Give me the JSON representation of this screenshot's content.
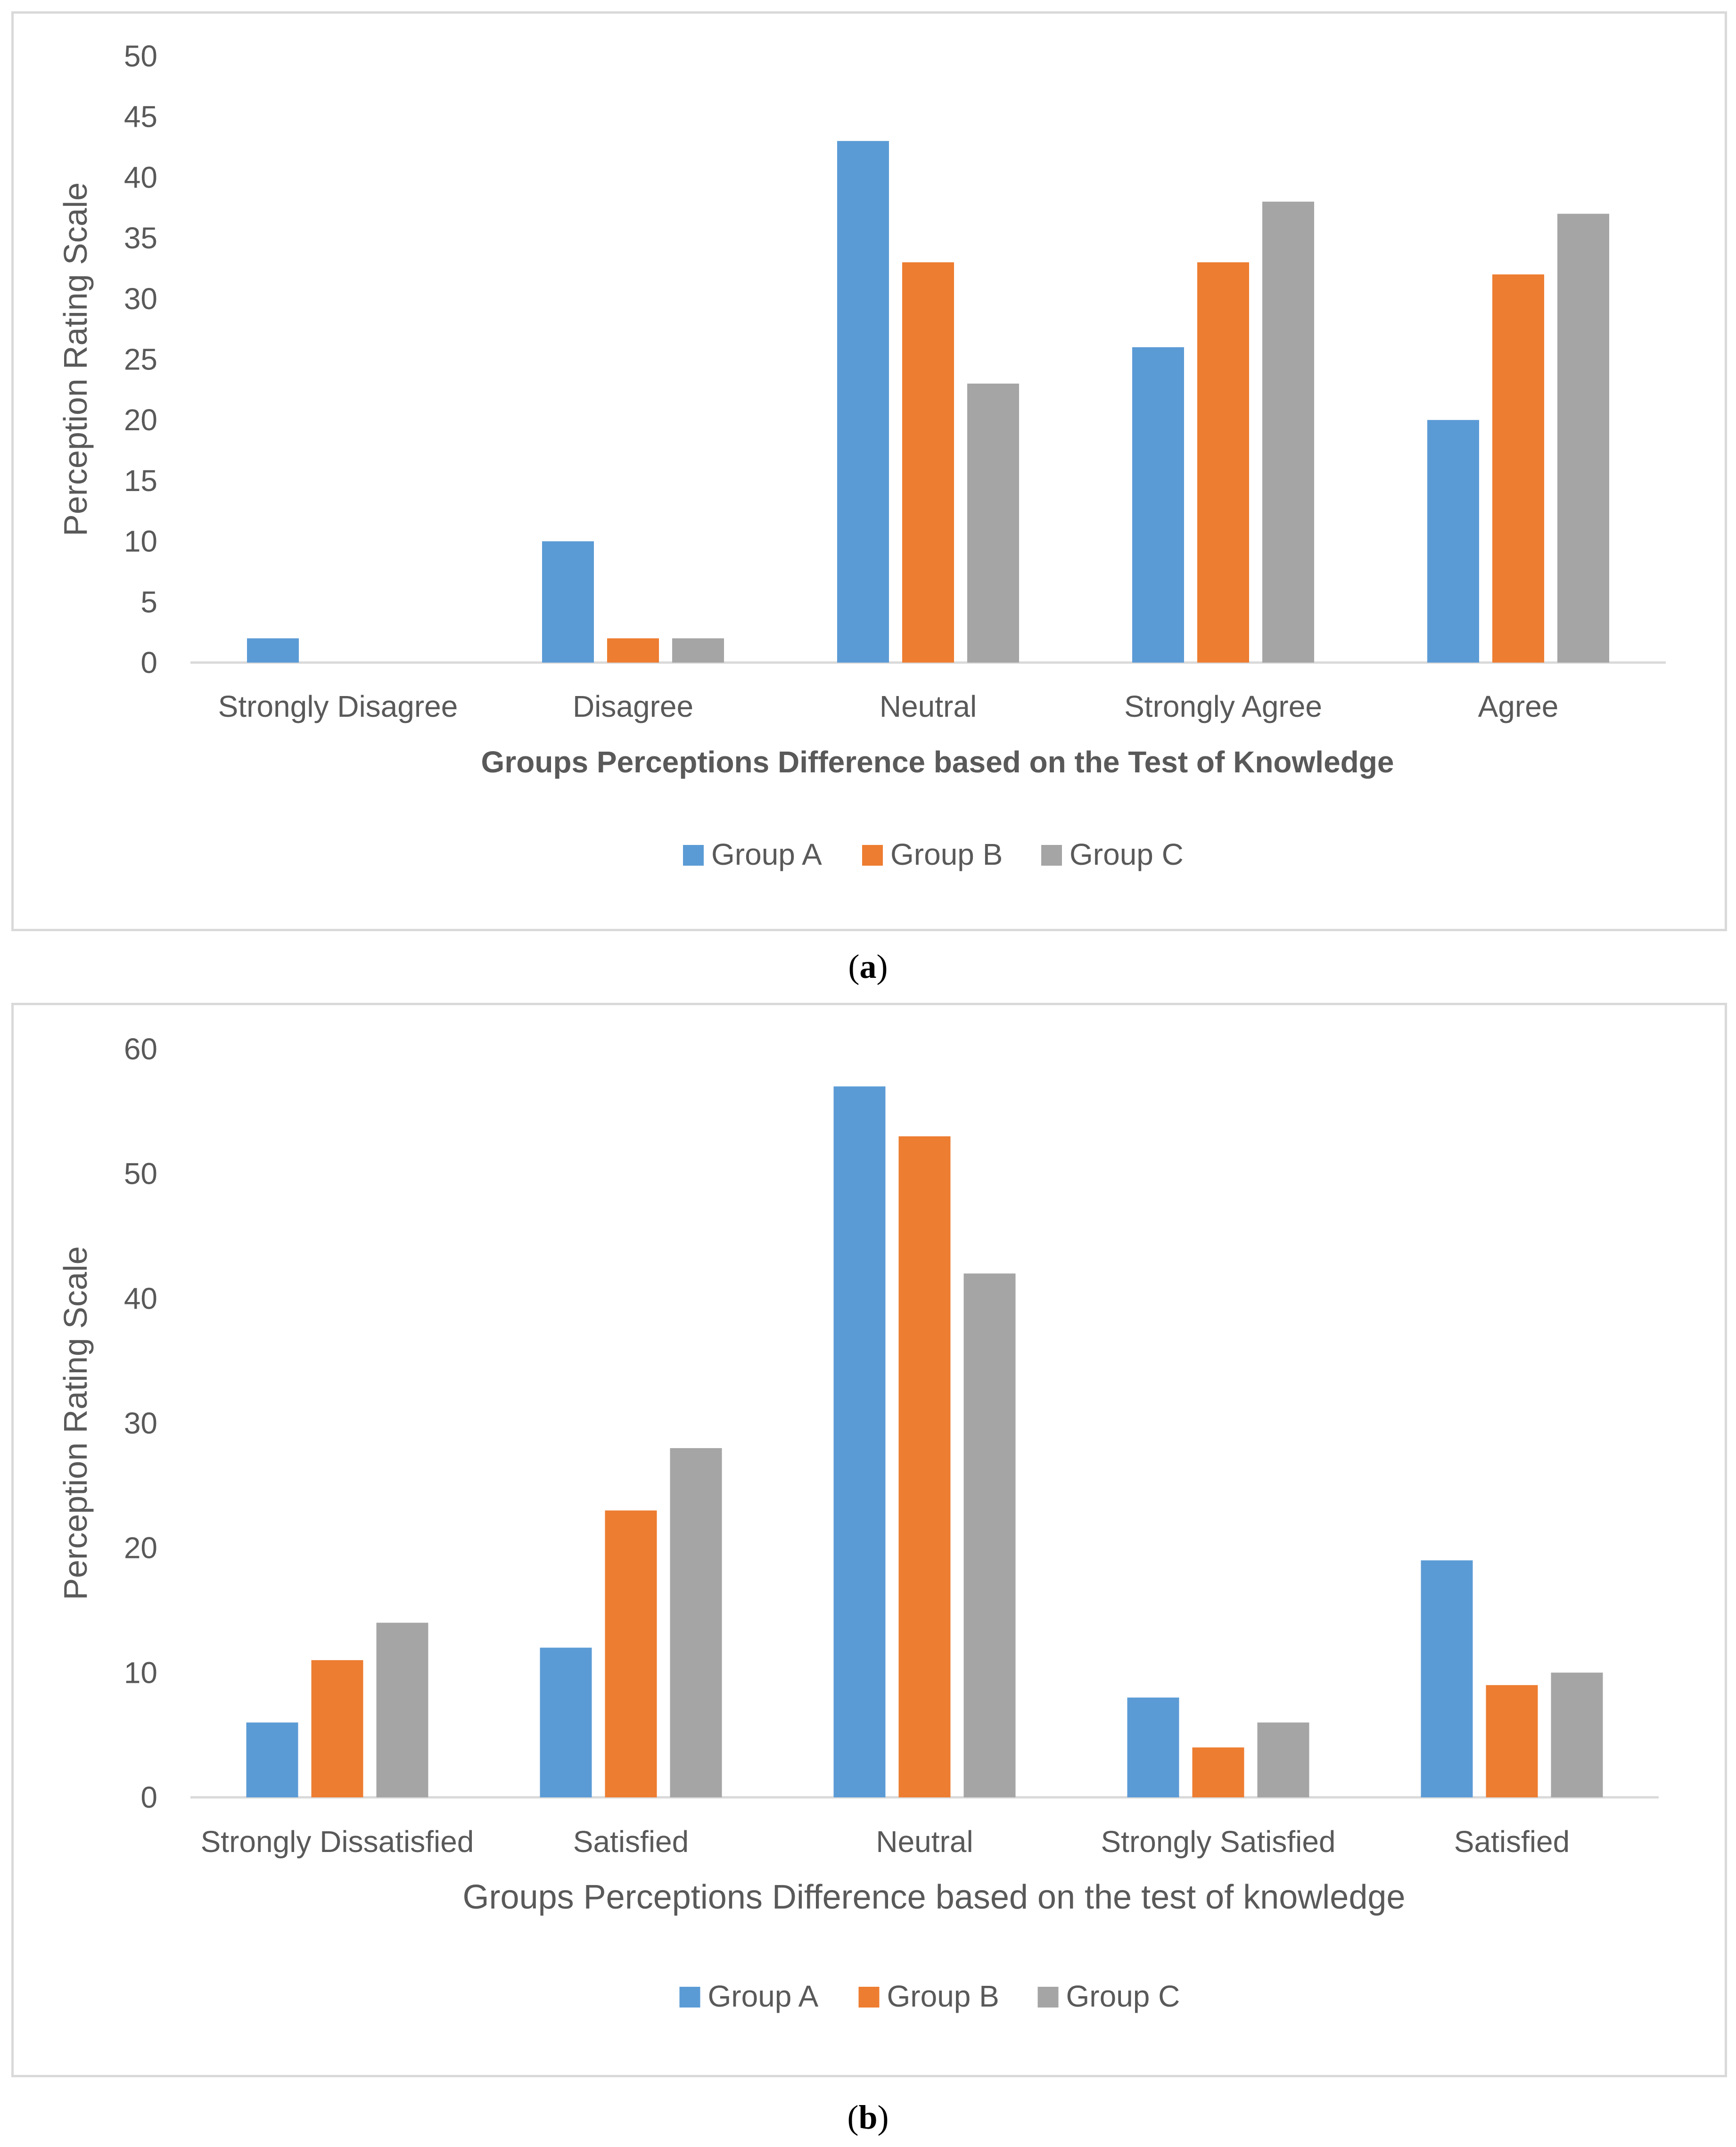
{
  "chart_data": [
    {
      "type": "bar",
      "id": "a",
      "caption_letter": "a",
      "categories": [
        "Strongly Disagree",
        "Disagree",
        "Neutral",
        "Strongly Agree",
        "Agree"
      ],
      "series": [
        {
          "name": "Group A",
          "values": [
            2,
            10,
            43,
            26,
            20
          ],
          "color": "#5b9bd5"
        },
        {
          "name": "Group B",
          "values": [
            0,
            2,
            33,
            33,
            32
          ],
          "color": "#ed7d31"
        },
        {
          "name": "Group C",
          "values": [
            0,
            2,
            23,
            38,
            37
          ],
          "color": "#a5a5a5"
        }
      ],
      "yticks": [
        0,
        5,
        10,
        15,
        20,
        25,
        30,
        35,
        40,
        45,
        50
      ],
      "ylim": [
        0,
        50
      ],
      "ylabel": "Perception Rating Scale",
      "xlabel": "Groups Perceptions Difference based on the Test of Knowledge",
      "xlabel_bold": true,
      "legend": "bottom",
      "grid": false
    },
    {
      "type": "bar",
      "id": "b",
      "caption_letter": "b",
      "categories": [
        "Strongly Dissatisfied",
        "Satisfied",
        "Neutral",
        "Strongly Satisfied",
        "Satisfied"
      ],
      "series": [
        {
          "name": "Group A",
          "values": [
            6,
            12,
            57,
            8,
            19
          ],
          "color": "#5b9bd5"
        },
        {
          "name": "Group B",
          "values": [
            11,
            23,
            53,
            4,
            9
          ],
          "color": "#ed7d31"
        },
        {
          "name": "Group C",
          "values": [
            14,
            28,
            42,
            6,
            10
          ],
          "color": "#a5a5a5"
        }
      ],
      "yticks": [
        0,
        10,
        20,
        30,
        40,
        50,
        60
      ],
      "ylim": [
        0,
        60
      ],
      "ylabel": "Perception Rating Scale",
      "xlabel": "Groups Perceptions Difference based on the test of knowledge",
      "xlabel_bold": false,
      "legend": "bottom",
      "grid": false
    }
  ]
}
